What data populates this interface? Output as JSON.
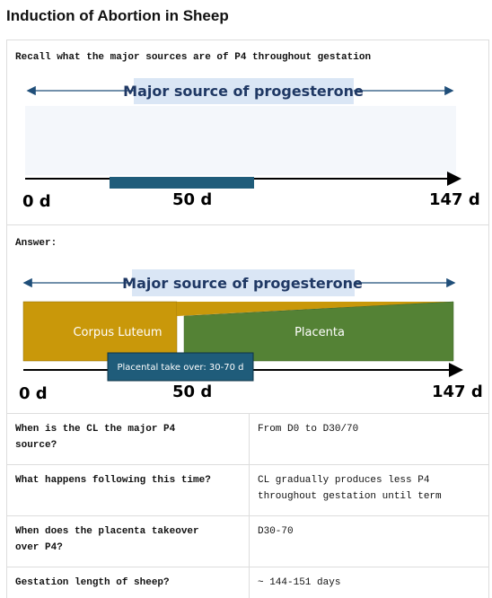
{
  "title": "Induction of Abortion in Sheep",
  "question_block": {
    "prompt": "Recall what the major sources are of P4 throughout gestation",
    "diagram": {
      "heading": "Major source of progesterone",
      "labels": [
        "0 d",
        "50 d",
        "147 d"
      ]
    }
  },
  "answer_block": {
    "prompt": "Answer:",
    "diagram": {
      "heading": "Major source of progesterone",
      "cl_label": "Corpus Luteum",
      "placenta_label": "Placenta",
      "takeover_label": "Placental take over: 30-70 d",
      "labels": [
        "0 d",
        "50 d",
        "147 d"
      ]
    }
  },
  "table": {
    "rows": [
      [
        "When is the CL the major P4 source?",
        "From D0 to D30/70"
      ],
      [
        "What happens following this time?",
        "CL gradually produces less P4 throughout gestation until term"
      ],
      [
        "When does the placenta takeover over P4?",
        "D30-70"
      ],
      [
        "Gestation length of sheep?",
        "~ 144-151 days"
      ]
    ]
  }
}
